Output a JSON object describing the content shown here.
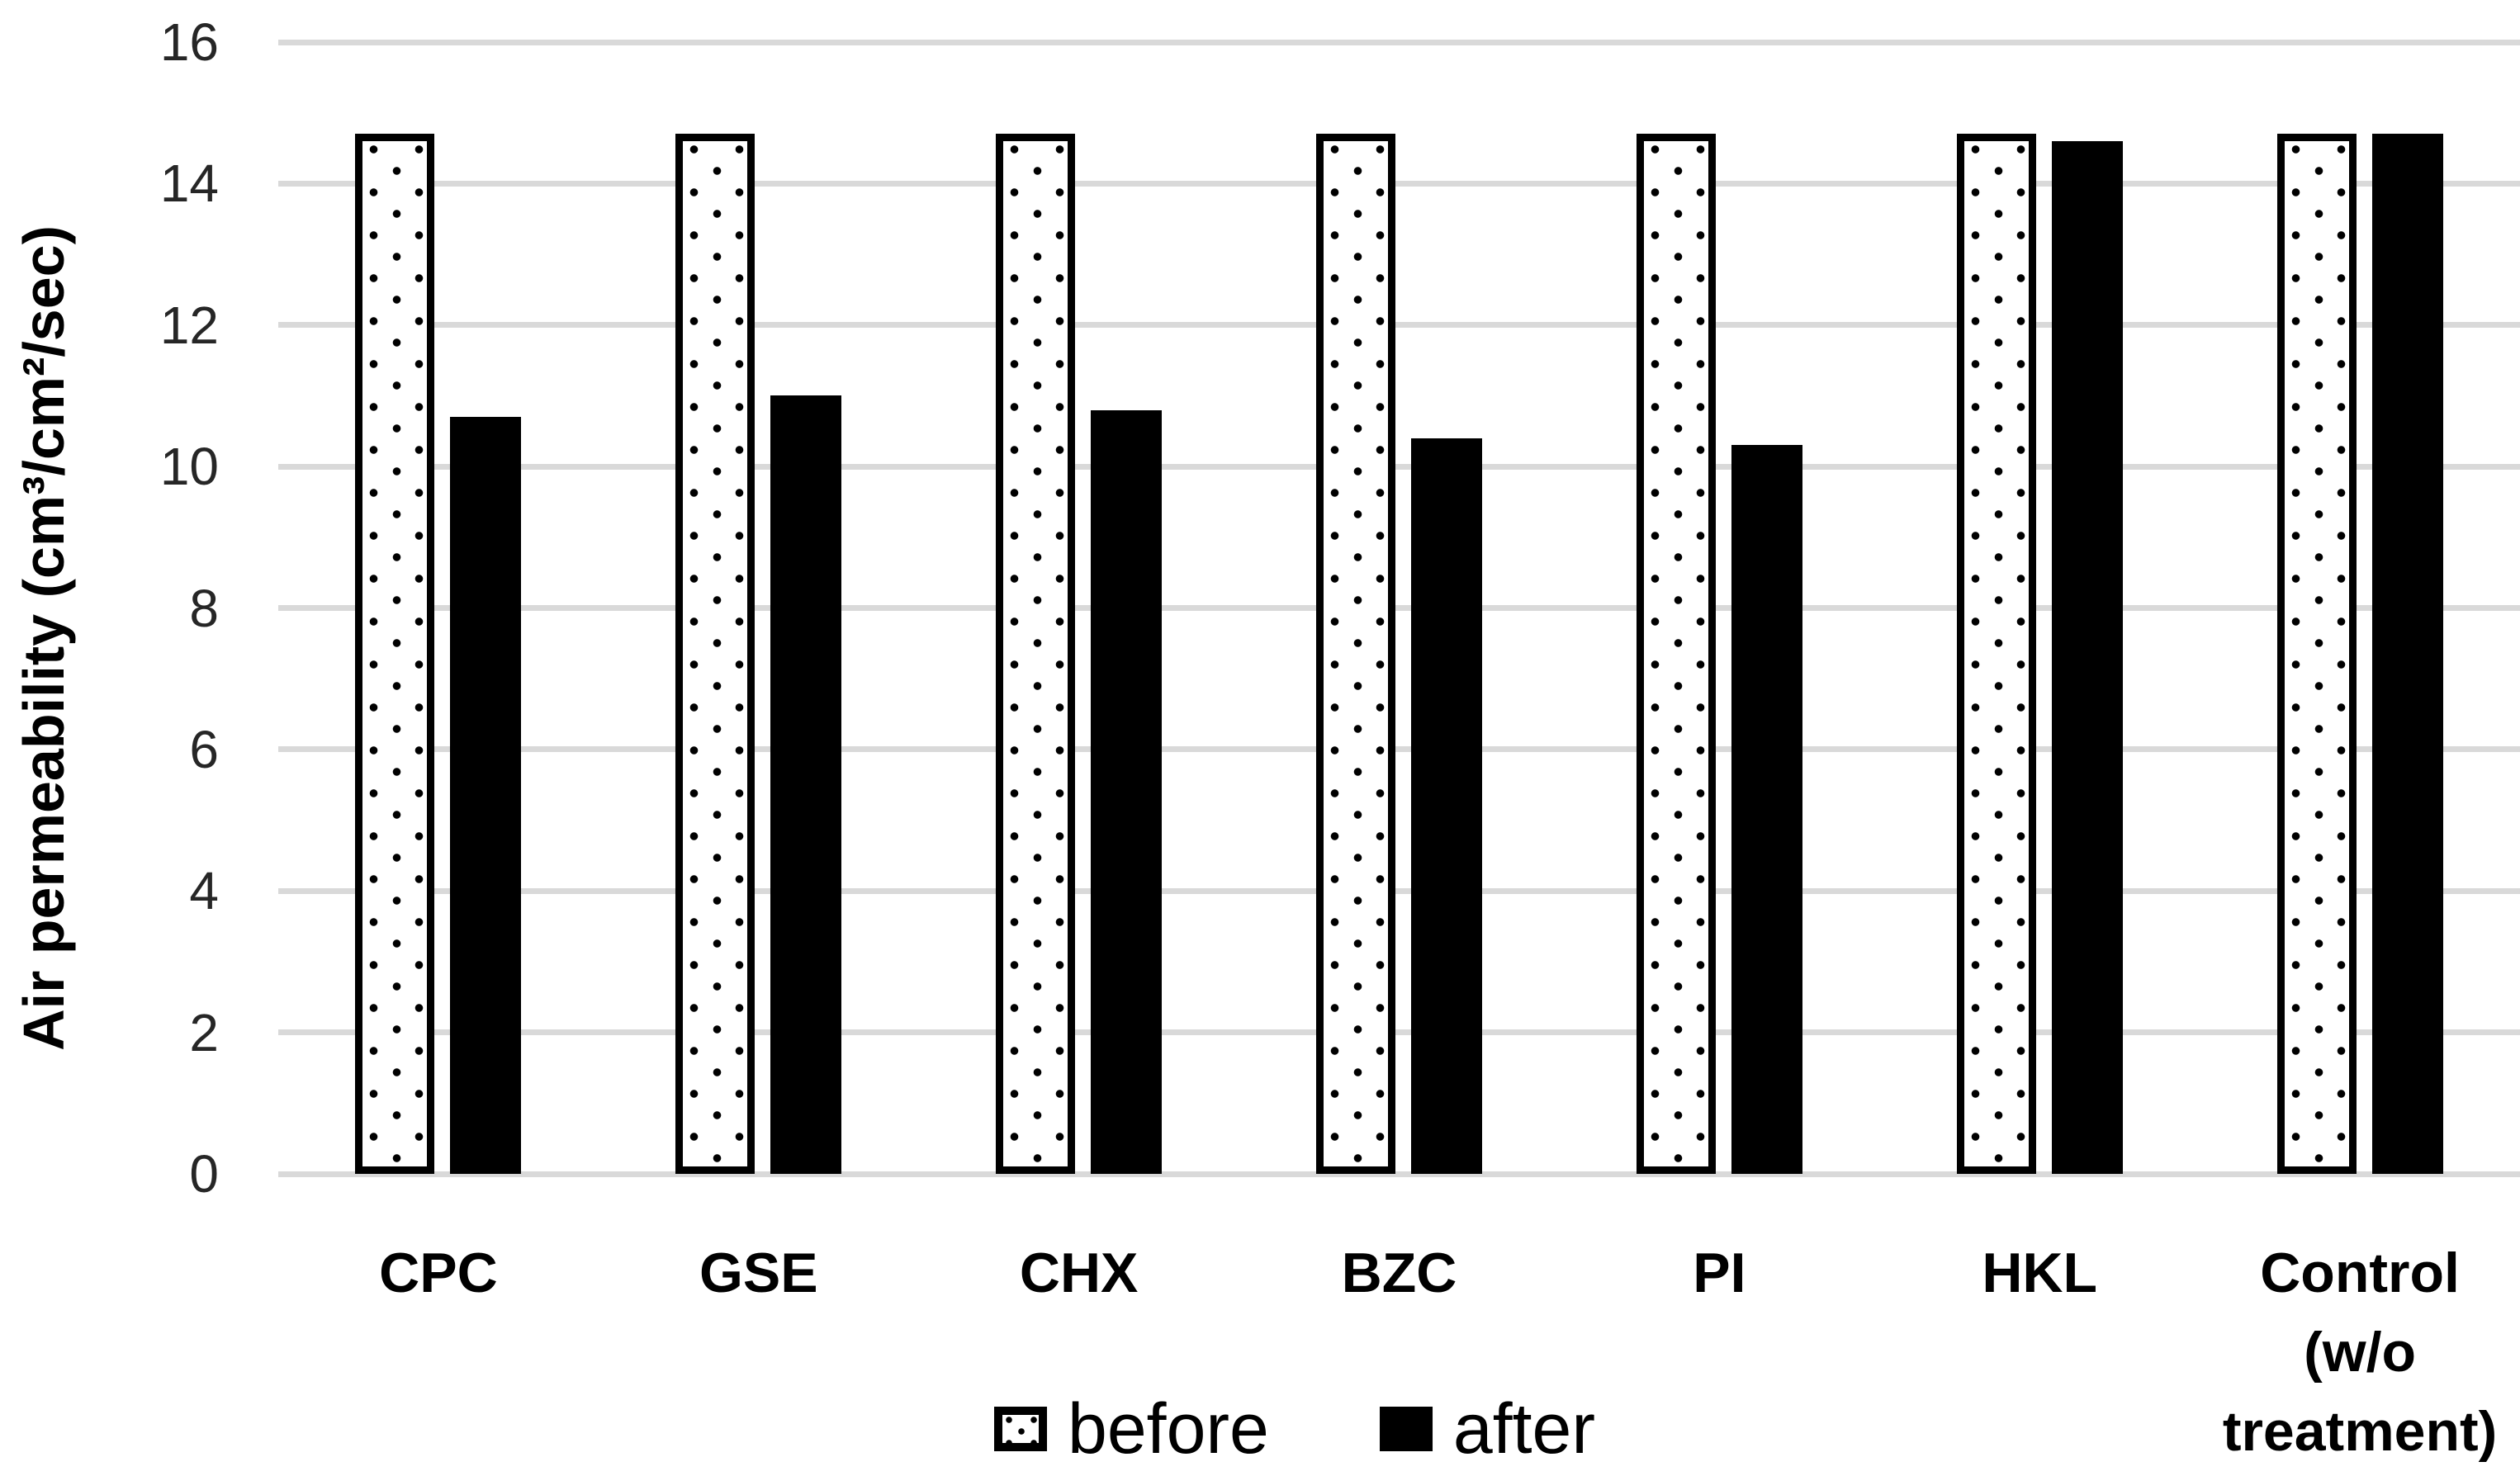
{
  "chart_data": {
    "type": "bar",
    "title": "",
    "xlabel": "",
    "ylabel": "Air permeability (cm³/cm²/sec)",
    "ylim": [
      0,
      16
    ],
    "ytick_step": 2,
    "yticks": [
      0,
      2,
      4,
      6,
      8,
      10,
      12,
      14,
      16
    ],
    "grid": "horizontal",
    "categories": [
      "CPC",
      "GSE",
      "CHX",
      "BZC",
      "PI",
      "HKL",
      "Control (w/o treatment)"
    ],
    "category_display_lines": [
      [
        "CPC"
      ],
      [
        "GSE"
      ],
      [
        "CHX"
      ],
      [
        "BZC"
      ],
      [
        "PI"
      ],
      [
        "HKL"
      ],
      [
        "Control",
        "(w/o",
        "treatment)"
      ]
    ],
    "series": [
      {
        "name": "before",
        "style": "dotted-white",
        "values": [
          14.7,
          14.7,
          14.7,
          14.7,
          14.7,
          14.7,
          14.7
        ]
      },
      {
        "name": "after",
        "style": "solid-black",
        "values": [
          10.7,
          11.0,
          10.8,
          10.4,
          10.3,
          14.6,
          14.7
        ]
      }
    ],
    "legend_position": "bottom-center",
    "colors": {
      "background": "#ffffff",
      "gridline": "#d9d9d9",
      "tick_text": "#262626",
      "label_text": "#000000",
      "bar_before_fill": "#ffffff",
      "bar_after_fill": "#000000",
      "bar_border": "#000000"
    }
  }
}
